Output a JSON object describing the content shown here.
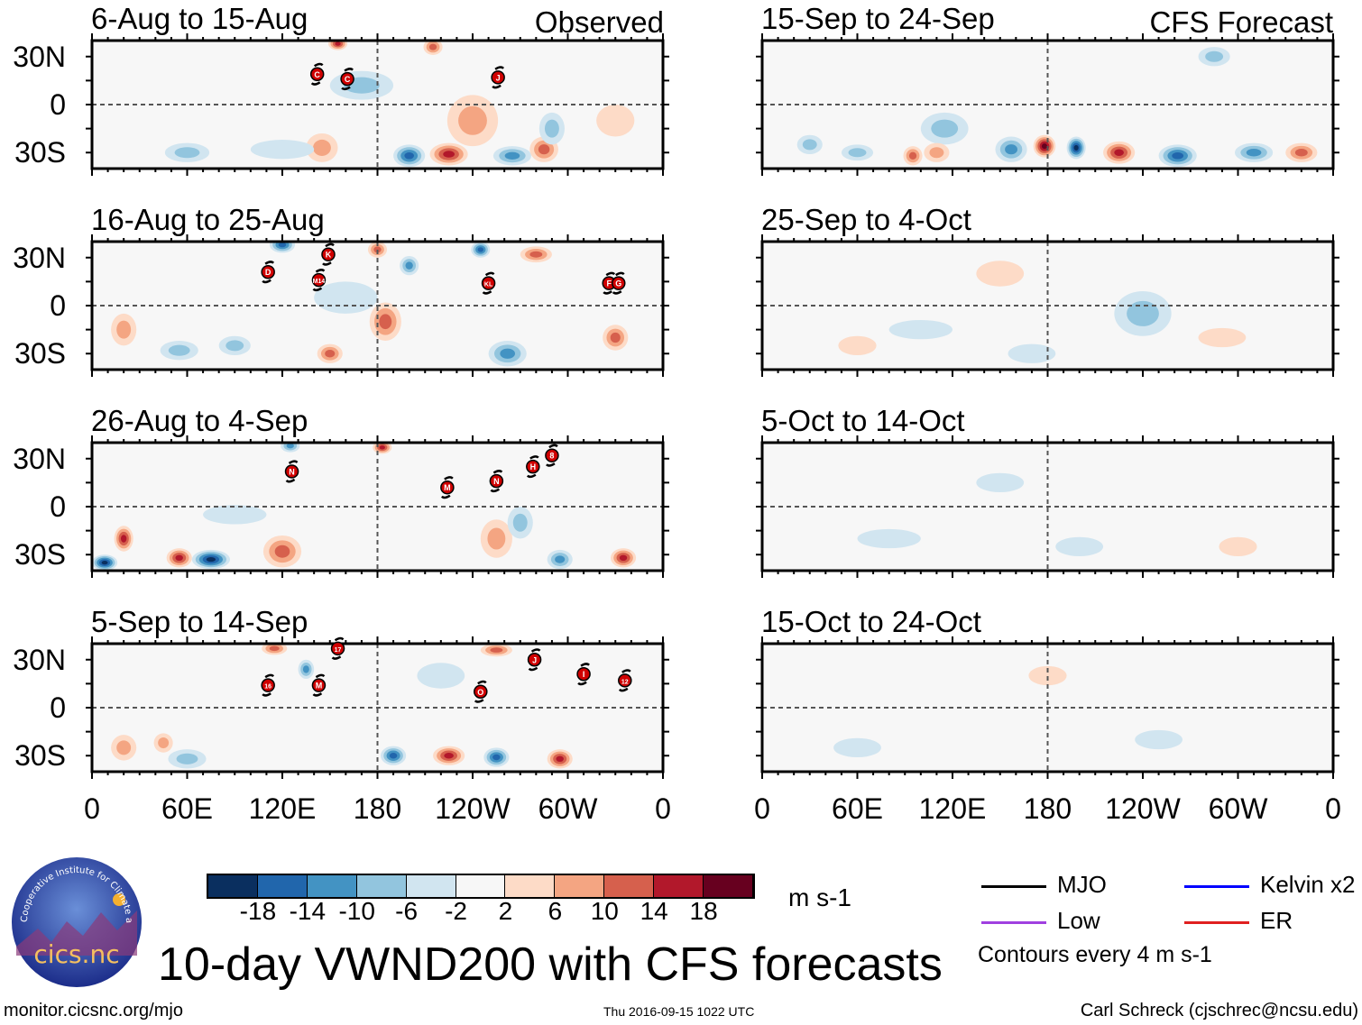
{
  "header": {
    "observed_label": "Observed",
    "forecast_label": "CFS Forecast"
  },
  "panels": {
    "observed": [
      {
        "title": "6-Aug to 15-Aug",
        "anomalies": [
          [
            200,
            -32,
            -16,
            10,
            7
          ],
          [
            225,
            -31,
            14,
            12,
            7
          ],
          [
            265,
            -32,
            -12,
            12,
            6
          ],
          [
            285,
            -28,
            10,
            9,
            8
          ],
          [
            145,
            -27,
            8,
            10,
            9
          ],
          [
            60,
            -30,
            -8,
            14,
            6
          ],
          [
            240,
            -10,
            6,
            16,
            16
          ],
          [
            155,
            38,
            14,
            6,
            4
          ],
          [
            215,
            36,
            12,
            6,
            5
          ],
          [
            170,
            12,
            -6,
            20,
            9
          ],
          [
            330,
            -10,
            4,
            12,
            10
          ],
          [
            290,
            -15,
            -6,
            8,
            10
          ],
          [
            120,
            -28,
            -4,
            20,
            6
          ]
        ],
        "storms": [
          {
            "label": "C",
            "lon": 142,
            "lat": 19
          },
          {
            "label": "C",
            "lon": 161,
            "lat": 16
          },
          {
            "label": "J",
            "lon": 256,
            "lat": 17
          }
        ]
      },
      {
        "title": "16-Aug to 25-Aug",
        "anomalies": [
          [
            120,
            38,
            -14,
            8,
            5
          ],
          [
            150,
            -30,
            10,
            8,
            6
          ],
          [
            185,
            -10,
            10,
            10,
            12
          ],
          [
            262,
            -30,
            -10,
            12,
            8
          ],
          [
            330,
            -20,
            12,
            8,
            8
          ],
          [
            200,
            25,
            -10,
            6,
            6
          ],
          [
            180,
            35,
            12,
            6,
            5
          ],
          [
            55,
            -28,
            -8,
            12,
            6
          ],
          [
            245,
            35,
            -14,
            6,
            5
          ],
          [
            20,
            -15,
            8,
            8,
            10
          ],
          [
            90,
            -25,
            -8,
            10,
            6
          ],
          [
            280,
            32,
            12,
            10,
            5
          ],
          [
            160,
            5,
            -4,
            20,
            10
          ]
        ],
        "storms": [
          {
            "label": "D",
            "lon": 111,
            "lat": 21
          },
          {
            "label": "K",
            "lon": 149,
            "lat": 32
          },
          {
            "label": "M14",
            "lon": 143,
            "lat": 16
          },
          {
            "label": "KL",
            "lon": 250,
            "lat": 14
          },
          {
            "label": "F",
            "lon": 326,
            "lat": 14
          },
          {
            "label": "G",
            "lon": 332,
            "lat": 14
          }
        ]
      },
      {
        "title": "26-Aug to 4-Sep",
        "anomalies": [
          [
            8,
            -35,
            -18,
            8,
            5
          ],
          [
            20,
            -20,
            14,
            6,
            8
          ],
          [
            75,
            -33,
            -18,
            12,
            6
          ],
          [
            55,
            -32,
            14,
            8,
            6
          ],
          [
            120,
            -28,
            10,
            12,
            10
          ],
          [
            183,
            37,
            16,
            6,
            4
          ],
          [
            295,
            -33,
            -12,
            8,
            6
          ],
          [
            335,
            -32,
            16,
            8,
            6
          ],
          [
            255,
            -20,
            8,
            10,
            12
          ],
          [
            125,
            38,
            -10,
            6,
            4
          ],
          [
            90,
            -5,
            -4,
            20,
            6
          ],
          [
            270,
            -10,
            -6,
            8,
            10
          ]
        ],
        "storms": [
          {
            "label": "N",
            "lon": 126,
            "lat": 22
          },
          {
            "label": "M",
            "lon": 224,
            "lat": 12
          },
          {
            "label": "N",
            "lon": 255,
            "lat": 16
          },
          {
            "label": "H",
            "lon": 278,
            "lat": 25
          },
          {
            "label": "8",
            "lon": 290,
            "lat": 32
          }
        ]
      },
      {
        "title": "5-Sep to 14-Sep",
        "anomalies": [
          [
            60,
            -32,
            -6,
            12,
            6
          ],
          [
            190,
            -30,
            -16,
            8,
            6
          ],
          [
            225,
            -30,
            16,
            10,
            6
          ],
          [
            255,
            -31,
            -14,
            8,
            6
          ],
          [
            295,
            -32,
            16,
            8,
            6
          ],
          [
            135,
            24,
            -10,
            5,
            6
          ],
          [
            115,
            37,
            10,
            8,
            4
          ],
          [
            255,
            36,
            12,
            10,
            4
          ],
          [
            20,
            -25,
            8,
            8,
            8
          ],
          [
            45,
            -22,
            6,
            6,
            6
          ],
          [
            220,
            20,
            -4,
            15,
            8
          ]
        ],
        "storms": [
          {
            "label": "17",
            "lon": 155,
            "lat": 37
          },
          {
            "label": "16",
            "lon": 111,
            "lat": 14
          },
          {
            "label": "M",
            "lon": 143,
            "lat": 14
          },
          {
            "label": "O",
            "lon": 245,
            "lat": 10
          },
          {
            "label": "J",
            "lon": 279,
            "lat": 30
          },
          {
            "label": "I",
            "lon": 310,
            "lat": 21
          },
          {
            "label": "12",
            "lon": 336,
            "lat": 17
          }
        ]
      }
    ],
    "forecast": [
      {
        "title": "15-Sep to 24-Sep",
        "anomalies": [
          [
            178,
            -26,
            20,
            7,
            7
          ],
          [
            157,
            -28,
            -12,
            10,
            8
          ],
          [
            198,
            -27,
            -18,
            6,
            7
          ],
          [
            225,
            -30,
            14,
            10,
            7
          ],
          [
            262,
            -32,
            -16,
            12,
            7
          ],
          [
            310,
            -30,
            -12,
            12,
            6
          ],
          [
            340,
            -30,
            12,
            10,
            6
          ],
          [
            30,
            -25,
            -8,
            8,
            6
          ],
          [
            115,
            -15,
            -6,
            15,
            10
          ],
          [
            95,
            -32,
            10,
            6,
            6
          ],
          [
            285,
            30,
            -6,
            10,
            6
          ],
          [
            110,
            -30,
            8,
            8,
            6
          ],
          [
            60,
            -30,
            -6,
            10,
            5
          ]
        ],
        "storms": []
      },
      {
        "title": "25-Sep to 4-Oct",
        "anomalies": [
          [
            240,
            -5,
            -6,
            18,
            14
          ],
          [
            100,
            -15,
            -4,
            20,
            6
          ],
          [
            170,
            -30,
            -4,
            15,
            6
          ],
          [
            290,
            -20,
            4,
            15,
            6
          ],
          [
            150,
            20,
            4,
            15,
            8
          ],
          [
            60,
            -25,
            4,
            12,
            6
          ]
        ],
        "storms": []
      },
      {
        "title": "5-Oct to 14-Oct",
        "anomalies": [
          [
            80,
            -20,
            -4,
            20,
            6
          ],
          [
            200,
            -25,
            -4,
            15,
            6
          ],
          [
            300,
            -25,
            4,
            12,
            6
          ],
          [
            150,
            15,
            -4,
            15,
            6
          ]
        ],
        "storms": []
      },
      {
        "title": "15-Oct to 24-Oct",
        "anomalies": [
          [
            60,
            -25,
            -4,
            15,
            6
          ],
          [
            250,
            -20,
            -4,
            15,
            6
          ],
          [
            180,
            20,
            4,
            12,
            6
          ]
        ],
        "storms": []
      }
    ]
  },
  "axes": {
    "y_labels": [
      "30N",
      "0",
      "30S"
    ],
    "x_labels": [
      "0",
      "60E",
      "120E",
      "180",
      "120W",
      "60W",
      "0"
    ]
  },
  "colorbar": {
    "colors": [
      "#0a2f5f",
      "#2166ac",
      "#4393c3",
      "#92c5de",
      "#d1e5f0",
      "#f7f7f7",
      "#fddbc7",
      "#f4a582",
      "#d6604d",
      "#b2182b",
      "#67001f"
    ],
    "labels": [
      "-18",
      "-14",
      "-10",
      "-6",
      "-2",
      "2",
      "6",
      "10",
      "14",
      "18"
    ],
    "units": "m s-1"
  },
  "legend": {
    "items": [
      {
        "label": "MJO",
        "color": "#000000"
      },
      {
        "label": "Kelvin x2",
        "color": "#0000ff"
      },
      {
        "label": "Low",
        "color": "#a040e0"
      },
      {
        "label": "ER",
        "color": "#e02020"
      }
    ],
    "contour_note": "Contours every 4 m s-1"
  },
  "logo": {
    "text": "cics.nc",
    "ring_text": "Cooperative Institute for Climate and Satellites"
  },
  "footer": {
    "title": "10-day VWND200 with CFS forecasts",
    "url": "monitor.cicsnc.org/mjo",
    "timestamp": "Thu 2016-09-15 1022 UTC",
    "author": "Carl Schreck (cjschrec@ncsu.edu)"
  }
}
